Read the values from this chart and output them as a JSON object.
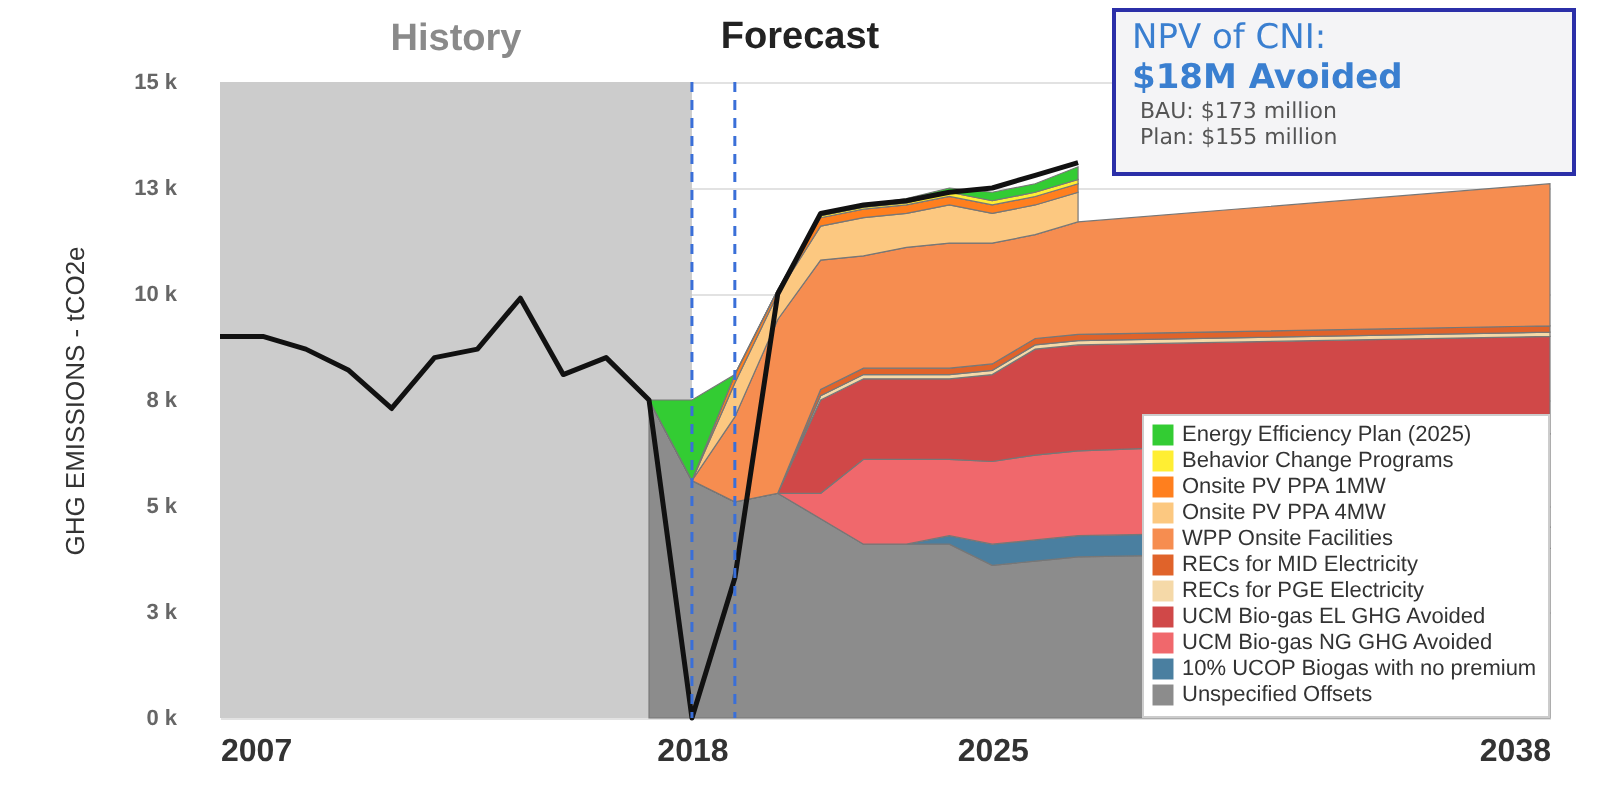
{
  "chart_data": {
    "type": "area",
    "ylabel": "GHG EMISSIONS - tCO2e",
    "xlim": [
      2007,
      2038
    ],
    "xticks": [
      2007,
      2018,
      2025,
      2038
    ],
    "ylim": [
      0,
      15000
    ],
    "yticks": [
      {
        "value": 0,
        "label": "0 k"
      },
      {
        "value": 2500,
        "label": "3 k"
      },
      {
        "value": 5000,
        "label": "5 k"
      },
      {
        "value": 7500,
        "label": "8 k"
      },
      {
        "value": 10000,
        "label": "10 k"
      },
      {
        "value": 12500,
        "label": "13 k"
      },
      {
        "value": 15000,
        "label": "15 k"
      }
    ],
    "grid": "y",
    "stacked": true,
    "legend": "bottom right",
    "bands": [
      {
        "axis": "x",
        "from": 2007,
        "to": 2018,
        "label": "History",
        "color": "#cccccc"
      }
    ],
    "ref_lines": [
      {
        "axis": "x",
        "value": 2018,
        "color": "#3a6fd8",
        "line_style": "dashed"
      },
      {
        "axis": "x",
        "value": 2019,
        "color": "#3a6fd8",
        "line_style": "dashed"
      }
    ],
    "annotations": [
      "Forecast",
      "NPV of CNI:",
      "$18M Avoided",
      "BAU: $173 million",
      "Plan: $155 million"
    ],
    "series": [
      {
        "name": "Unspecified Offsets",
        "color": "#8c8c8c",
        "x": [
          2017,
          2018,
          2019,
          2020,
          2021,
          2022,
          2023,
          2024,
          2025,
          2026,
          2027,
          2038
        ],
        "values": [
          7500,
          5600,
          5100,
          5300,
          4700,
          4100,
          4100,
          4100,
          3600,
          3700,
          3800,
          4000
        ]
      },
      {
        "name": "10% UCOP Biogas with no premium",
        "color": "#4a7fa0",
        "x": [
          2017,
          2018,
          2019,
          2020,
          2021,
          2022,
          2023,
          2024,
          2025,
          2026,
          2027,
          2038
        ],
        "values": [
          0,
          0,
          0,
          0,
          0,
          0,
          0,
          200,
          500,
          500,
          500,
          500
        ]
      },
      {
        "name": "UCM Bio-gas NG GHG Avoided",
        "color": "#f0686c",
        "x": [
          2017,
          2018,
          2019,
          2020,
          2021,
          2022,
          2023,
          2024,
          2025,
          2026,
          2027,
          2038
        ],
        "values": [
          0,
          0,
          0,
          0,
          600,
          2000,
          2000,
          1800,
          1950,
          2000,
          2000,
          2200
        ]
      },
      {
        "name": "UCM Bio-gas EL GHG Avoided",
        "color": "#d04848",
        "x": [
          2017,
          2018,
          2019,
          2020,
          2021,
          2022,
          2023,
          2024,
          2025,
          2026,
          2027,
          2038
        ],
        "values": [
          0,
          0,
          0,
          0,
          2200,
          1900,
          1900,
          1900,
          2050,
          2500,
          2500,
          2300
        ]
      },
      {
        "name": "RECs for PGE Electricity",
        "color": "#f5d9a8",
        "x": [
          2017,
          2018,
          2019,
          2020,
          2021,
          2022,
          2023,
          2024,
          2025,
          2026,
          2027,
          2038
        ],
        "values": [
          0,
          0,
          0,
          0,
          100,
          100,
          100,
          100,
          100,
          100,
          100,
          100
        ]
      },
      {
        "name": "RECs for MID Electricity",
        "color": "#e0632a",
        "x": [
          2017,
          2018,
          2019,
          2020,
          2021,
          2022,
          2023,
          2024,
          2025,
          2026,
          2027,
          2038
        ],
        "values": [
          0,
          0,
          0,
          0,
          150,
          150,
          150,
          150,
          150,
          150,
          150,
          150
        ]
      },
      {
        "name": "WPP Onsite Facilities",
        "color": "#f68d50",
        "x": [
          2017,
          2018,
          2019,
          2020,
          2021,
          2022,
          2023,
          2024,
          2025,
          2026,
          2027,
          2038
        ],
        "values": [
          0,
          0,
          2000,
          4100,
          3050,
          2650,
          2850,
          2950,
          2850,
          2450,
          2650,
          3350
        ]
      },
      {
        "name": "Onsite PV PPA 4MW",
        "color": "#fcc880",
        "x": [
          2017,
          2018,
          2019,
          2020,
          2021,
          2022,
          2023,
          2024,
          2025,
          2026,
          2027
        ],
        "values": [
          0,
          0,
          800,
          600,
          800,
          900,
          800,
          900,
          700,
          700,
          700
        ]
      },
      {
        "name": "Onsite PV PPA 1MW",
        "color": "#ff7f1e",
        "x": [
          2017,
          2018,
          2019,
          2020,
          2021,
          2022,
          2023,
          2024,
          2025,
          2026,
          2027
        ],
        "values": [
          0,
          0,
          200,
          100,
          200,
          200,
          200,
          200,
          200,
          200,
          200
        ]
      },
      {
        "name": "Behavior Change Programs",
        "color": "#ffee33",
        "x": [
          2017,
          2018,
          2019,
          2020,
          2021,
          2022,
          2023,
          2024,
          2025,
          2026,
          2027
        ],
        "values": [
          0,
          0,
          0,
          0,
          50,
          50,
          50,
          100,
          100,
          100,
          100
        ]
      },
      {
        "name": "Energy Efficiency Plan (2025)",
        "color": "#33cc33",
        "x": [
          2017,
          2018,
          2019,
          2020,
          2021,
          2022,
          2023,
          2024,
          2025,
          2026,
          2027
        ],
        "values": [
          0,
          1900,
          0,
          0,
          0,
          50,
          100,
          100,
          200,
          200,
          300
        ]
      },
      {
        "type": "line",
        "color": "#111111",
        "x": [
          2007,
          2008,
          2009,
          2010,
          2011,
          2012,
          2013,
          2014,
          2015,
          2016,
          2017,
          2018,
          2019,
          2020,
          2021,
          2022,
          2023,
          2024,
          2025,
          2026,
          2027
        ],
        "values": [
          9000,
          9000,
          8700,
          8200,
          7300,
          8500,
          8700,
          9900,
          8100,
          8500,
          7500,
          0,
          3300,
          10000,
          11900,
          12100,
          12200,
          12400,
          12500,
          12800,
          13100
        ]
      }
    ]
  }
}
